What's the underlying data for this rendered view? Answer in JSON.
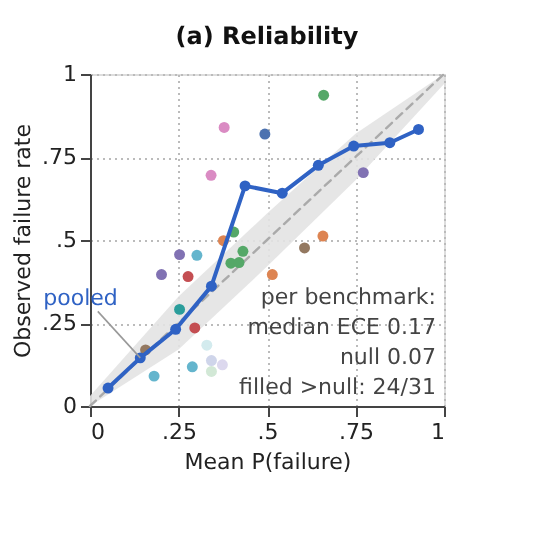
{
  "chart_data": {
    "type": "line",
    "title": "(a) Reliability",
    "xlabel": "Mean P(failure)",
    "ylabel": "Observed failure rate",
    "xlim": [
      0,
      1
    ],
    "ylim": [
      0,
      1
    ],
    "xticks": [
      0,
      {
        "value": 0.25,
        "label": ".25"
      },
      {
        "value": 0.5,
        "label": ".5"
      },
      {
        "value": 0.75,
        "label": ".75"
      },
      1
    ],
    "yticks": [
      0,
      {
        "value": 0.25,
        "label": ".25"
      },
      {
        "value": 0.5,
        "label": ".5"
      },
      {
        "value": 0.75,
        "label": ".75"
      },
      1
    ],
    "grid": true,
    "legend": false,
    "series": [
      {
        "type": "line",
        "color": "#aaaaaa",
        "line_style": "dashed",
        "marker": "none",
        "x": [
          0,
          0.25,
          0.5,
          0.75,
          1
        ],
        "values": [
          0,
          0.25,
          0.5,
          0.75,
          1
        ],
        "lower": [
          0,
          0.17,
          0.42,
          0.68,
          0.97
        ],
        "upper": [
          0.03,
          0.33,
          0.58,
          0.82,
          1
        ]
      },
      {
        "type": "scatter",
        "marker": "circle",
        "x": [
          0.66,
          0.379,
          0.494,
          0.342,
          0.772,
          0.377,
          0.406,
          0.432,
          0.398,
          0.421,
          0.253,
          0.302,
          0.202,
          0.277,
          0.515,
          0.606,
          0.658,
          0.253,
          0.296,
          0.157,
          0.181,
          0.289,
          0.33,
          0.343,
          0.374,
          0.343
        ],
        "values": [
          0.936,
          0.839,
          0.819,
          0.695,
          0.703,
          0.498,
          0.524,
          0.466,
          0.43,
          0.432,
          0.456,
          0.454,
          0.396,
          0.39,
          0.396,
          0.476,
          0.512,
          0.291,
          0.235,
          0.169,
          0.09,
          0.118,
          0.183,
          0.137,
          0.124,
          0.104
        ],
        "colors": [
          "#55a868",
          "#da8bc3",
          "#4c72b0",
          "#da8bc3",
          "#8172b3",
          "#dd8452",
          "#55a868",
          "#55a868",
          "#55a868",
          "#55a868",
          "#8172b3",
          "#64b5cd",
          "#8172b3",
          "#c44e52",
          "#dd8452",
          "#937860",
          "#dd8452",
          "#2a9d9b",
          "#c44e52",
          "#937860",
          "#64b5cd",
          "#64b5cd",
          "#d3ebee",
          "#cfd5ea",
          "#dcd8ee",
          "#d2e8d6"
        ]
      },
      {
        "type": "line",
        "color": "#2f62c4",
        "line_style": "solid",
        "marker": "circle",
        "x": [
          0.051,
          0.142,
          0.242,
          0.343,
          0.438,
          0.543,
          0.645,
          0.745,
          0.847,
          0.928
        ],
        "values": [
          0.054,
          0.145,
          0.231,
          0.361,
          0.663,
          0.641,
          0.725,
          0.783,
          0.793,
          0.833
        ]
      }
    ],
    "annotations": [
      {
        "text": "pooled",
        "x": 0.142,
        "y": 0.145
      },
      "per benchmark:\nmedian ECE 0.17\nnull 0.07\nfilled >null: 24/31"
    ]
  }
}
